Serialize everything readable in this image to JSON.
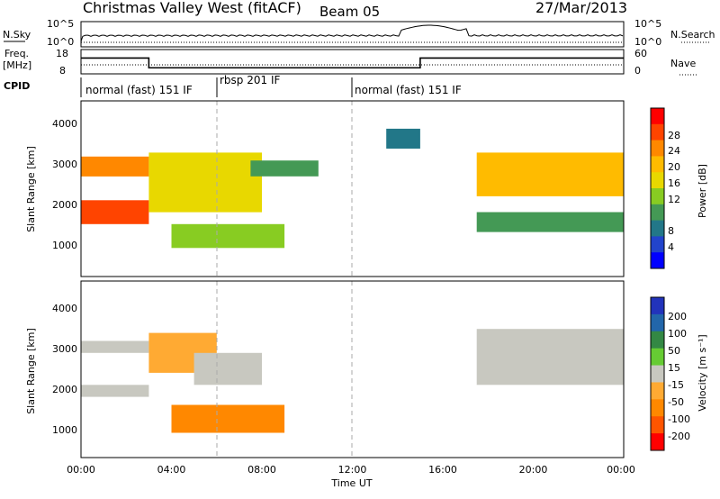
{
  "header": {
    "station": "Christmas Valley West (fitACF)",
    "beam": "Beam 05",
    "date": "27/Mar/2013"
  },
  "noise_panel": {
    "left_label": "N.Sky",
    "left_ticks": [
      "10^5",
      "10^0"
    ],
    "right_label": "N.Search",
    "right_ticks": [
      "10^5",
      "10^0"
    ]
  },
  "freq_panel": {
    "left_label_1": "Freq.",
    "left_label_2": "[MHz]",
    "left_ticks": [
      "18",
      "8"
    ],
    "right_label": "Nave",
    "right_ticks": [
      "60",
      "0"
    ]
  },
  "cpid": {
    "label": "CPID",
    "segments": [
      {
        "label": "normal (fast) 151 IF",
        "start_h": 0,
        "end_h": 6
      },
      {
        "label": "rbsp 201 IF",
        "start_h": 6,
        "end_h": 12
      },
      {
        "label": "normal (fast) 151 IF",
        "start_h": 12,
        "end_h": 24
      }
    ]
  },
  "power_colorbar": {
    "label": "Power [dB]",
    "ticks": [
      "28",
      "24",
      "20",
      "16",
      "12",
      "8",
      "4"
    ],
    "colors": [
      "#ff0000",
      "#ff4400",
      "#ff8800",
      "#ffbb00",
      "#e8d800",
      "#88cc22",
      "#449955",
      "#227788",
      "#2244cc",
      "#0000ff"
    ]
  },
  "velocity_colorbar": {
    "label": "Velocity [m s⁻¹]",
    "ticks": [
      "200",
      "100",
      "50",
      "15",
      "-15",
      "-50",
      "-100",
      "-200"
    ],
    "colors": [
      "#2233bb",
      "#2266aa",
      "#338844",
      "#66cc33",
      "#c8c8c0",
      "#ffaa33",
      "#ff8800",
      "#ff5500",
      "#ff0000"
    ]
  },
  "axes": {
    "ylabel": "Slant Range [km]",
    "yticks": [
      "4000",
      "3000",
      "2000",
      "1000"
    ],
    "xlabel": "Time UT",
    "xticks": [
      "00:00",
      "04:00",
      "08:00",
      "12:00",
      "16:00",
      "20:00",
      "00:00"
    ]
  },
  "chart_data": {
    "type": "heatmap",
    "title": "Christmas Valley West (fitACF) Beam 05 27/Mar/2013",
    "xlabel": "Time UT",
    "ylabel": "Slant Range [km]",
    "xlim_hours": [
      0,
      24
    ],
    "ylim_km": [
      180,
      4600
    ],
    "frequency_mhz": [
      {
        "start_h": 0,
        "end_h": 3,
        "value": 14.5
      },
      {
        "start_h": 3,
        "end_h": 15,
        "value": 10.5
      },
      {
        "start_h": 15,
        "end_h": 24,
        "value": 14.5
      }
    ],
    "power_regions_db": [
      {
        "t0": 0,
        "t1": 3,
        "r0": 2700,
        "r1": 3200,
        "power": 26
      },
      {
        "t0": 0,
        "t1": 3,
        "r0": 1500,
        "r1": 2100,
        "power": 27
      },
      {
        "t0": 3,
        "t1": 8,
        "r0": 1800,
        "r1": 3300,
        "power": 18
      },
      {
        "t0": 4,
        "t1": 9,
        "r0": 900,
        "r1": 1500,
        "power": 14
      },
      {
        "t0": 7.5,
        "t1": 10.5,
        "r0": 2700,
        "r1": 3100,
        "power": 10
      },
      {
        "t0": 13.5,
        "t1": 15,
        "r0": 3400,
        "r1": 3900,
        "power": 7
      },
      {
        "t0": 17.5,
        "t1": 24,
        "r0": 2200,
        "r1": 3300,
        "power": 20
      },
      {
        "t0": 17.5,
        "t1": 24,
        "r0": 1300,
        "r1": 1800,
        "power": 10
      }
    ],
    "velocity_regions_ms": [
      {
        "t0": 0,
        "t1": 3,
        "r0": 2800,
        "r1": 3100,
        "velocity": 0
      },
      {
        "t0": 0,
        "t1": 3,
        "r0": 1700,
        "r1": 2000,
        "velocity": 0
      },
      {
        "t0": 3,
        "t1": 6,
        "r0": 2300,
        "r1": 3300,
        "velocity": -40
      },
      {
        "t0": 4,
        "t1": 9,
        "r0": 800,
        "r1": 1500,
        "velocity": -70
      },
      {
        "t0": 5,
        "t1": 8,
        "r0": 2000,
        "r1": 2800,
        "velocity": 0
      },
      {
        "t0": 17.5,
        "t1": 24,
        "r0": 2000,
        "r1": 3400,
        "velocity": 0
      }
    ]
  }
}
